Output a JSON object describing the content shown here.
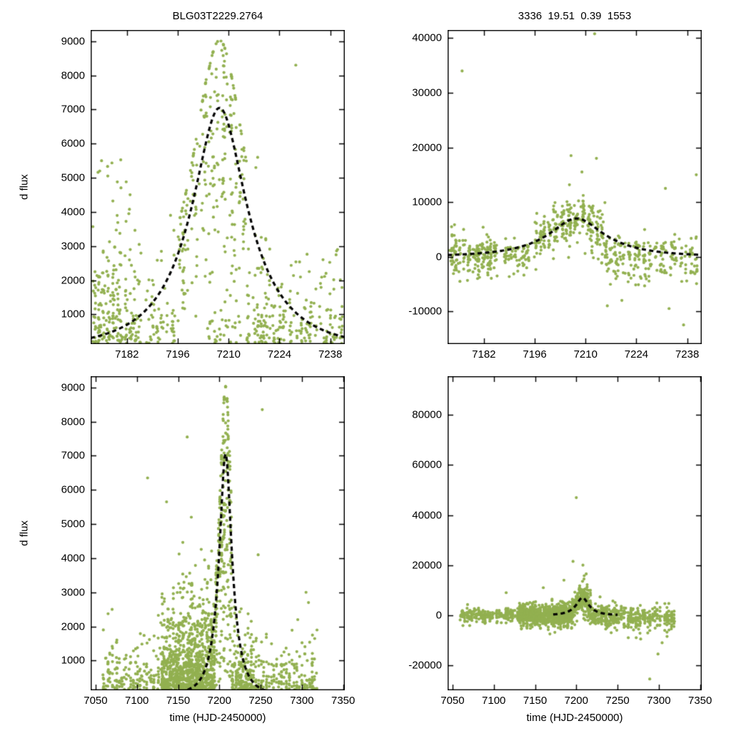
{
  "style": {
    "background": "#ffffff",
    "point_color": "#92b050",
    "curve_color": "#000000",
    "axis_color": "#000000",
    "point_radius": 2.1
  },
  "chart_data": [
    {
      "id": "top-left",
      "type": "scatter",
      "title": "BLG03T2229.2764",
      "xlabel": "",
      "ylabel": "d flux",
      "xlim": [
        7172,
        7242
      ],
      "ylim": [
        130,
        9330
      ],
      "xticks": [
        7182,
        7196,
        7210,
        7224,
        7238
      ],
      "yticks": [
        1000,
        2000,
        3000,
        4000,
        5000,
        6000,
        7000,
        8000,
        9000
      ],
      "grid": false,
      "legend": false,
      "model_curve": {
        "type": "paczynski",
        "t0": 7207.5,
        "tE": 19.51,
        "u0": 0.39,
        "peak_flux": 7050,
        "baseline": 0,
        "draw_range": [
          7172,
          7242
        ],
        "style": "dashed"
      },
      "seed": 11,
      "clusters": [
        {
          "x0": 7172.5,
          "x1": 7186,
          "cols": 11,
          "n": 230,
          "y": {
            "mode": "exp",
            "base": 150,
            "scale": 1400,
            "cap": 5600
          }
        },
        {
          "x0": 7187,
          "x1": 7195,
          "cols": 6,
          "n": 60,
          "y": {
            "mode": "exp",
            "base": 150,
            "scale": 800,
            "cap": 4000
          }
        },
        {
          "x0": 7196,
          "x1": 7204,
          "cols": 7,
          "n": 110,
          "y": {
            "mode": "model",
            "spread": 0.5,
            "fmin": 0.1,
            "fmax": 1.3
          }
        },
        {
          "x0": 7204,
          "x1": 7215,
          "cols": 9,
          "n": 170,
          "y": {
            "mode": "model",
            "spread": 0.42,
            "fmin": 0.12,
            "fmax": 1.28
          }
        },
        {
          "x0": 7203,
          "x1": 7214,
          "cols": 8,
          "n": 30,
          "y": {
            "mode": "exp",
            "base": 150,
            "scale": 700,
            "cap": 2200
          }
        },
        {
          "x0": 7215,
          "x1": 7222,
          "cols": 6,
          "n": 80,
          "y": {
            "mode": "exp",
            "base": 150,
            "scale": 1100,
            "cap": 3600
          }
        },
        {
          "x0": 7222,
          "x1": 7241.5,
          "cols": 14,
          "n": 150,
          "y": {
            "mode": "exp",
            "base": 150,
            "scale": 800,
            "cap": 3000
          }
        }
      ],
      "outliers": [
        [
          7228.5,
          8300
        ],
        [
          7218,
          5600
        ],
        [
          7217.5,
          5300
        ],
        [
          7194,
          3900
        ],
        [
          7240,
          2900
        ],
        [
          7236,
          2600
        ],
        [
          7175,
          5500
        ],
        [
          7174.5,
          5200
        ]
      ]
    },
    {
      "id": "top-right",
      "type": "scatter",
      "title": "3336  19.51  0.39  1553",
      "xlabel": "",
      "ylabel": "",
      "xlim": [
        7172,
        7242
      ],
      "ylim": [
        -16000,
        41500
      ],
      "xticks": [
        7182,
        7196,
        7210,
        7224,
        7238
      ],
      "yticks": [
        -10000,
        0,
        10000,
        20000,
        30000,
        40000
      ],
      "grid": false,
      "legend": false,
      "model_curve": {
        "type": "paczynski",
        "t0": 7207.5,
        "tE": 19.51,
        "u0": 0.39,
        "peak_flux": 7000,
        "baseline": 0,
        "draw_range": [
          7172,
          7242
        ],
        "style": "dashed"
      },
      "seed": 22,
      "clusters": [
        {
          "x0": 7172.5,
          "x1": 7186,
          "cols": 11,
          "n": 200,
          "y": {
            "mode": "gauss",
            "mu": 200,
            "sigma": 1800,
            "clip": [
              -5500,
              6500
            ]
          }
        },
        {
          "x0": 7187,
          "x1": 7195,
          "cols": 6,
          "n": 60,
          "y": {
            "mode": "gauss",
            "mu": 200,
            "sigma": 1500,
            "clip": [
              -4500,
              5500
            ]
          }
        },
        {
          "x0": 7196,
          "x1": 7204,
          "cols": 7,
          "n": 110,
          "y": {
            "mode": "modelg",
            "spread_abs": 1800
          }
        },
        {
          "x0": 7204,
          "x1": 7215,
          "cols": 9,
          "n": 160,
          "y": {
            "mode": "modelg",
            "spread_abs": 2600
          }
        },
        {
          "x0": 7215,
          "x1": 7224,
          "cols": 7,
          "n": 90,
          "y": {
            "mode": "gauss",
            "mu": 0,
            "sigma": 2200,
            "clip": [
              -7500,
              7500
            ]
          }
        },
        {
          "x0": 7224,
          "x1": 7241.5,
          "cols": 12,
          "n": 140,
          "y": {
            "mode": "gauss",
            "mu": -300,
            "sigma": 2000,
            "clip": [
              -7000,
              7000
            ]
          }
        }
      ],
      "outliers": [
        [
          7176,
          34000
        ],
        [
          7212.5,
          40800
        ],
        [
          7206,
          18500
        ],
        [
          7209,
          15500
        ],
        [
          7213,
          18000
        ],
        [
          7216,
          -9000
        ],
        [
          7220,
          -8000
        ],
        [
          7232,
          12500
        ],
        [
          7240.5,
          15000
        ],
        [
          7237,
          -12500
        ],
        [
          7233,
          -9500
        ]
      ]
    },
    {
      "id": "bottom-left",
      "type": "scatter",
      "title": "",
      "xlabel": "time (HJD-2450000)",
      "ylabel": "d flux",
      "xlim": [
        7044,
        7352
      ],
      "ylim": [
        130,
        9330
      ],
      "xticks": [
        7050,
        7100,
        7150,
        7200,
        7250,
        7300,
        7350
      ],
      "yticks": [
        1000,
        2000,
        3000,
        4000,
        5000,
        6000,
        7000,
        8000,
        9000
      ],
      "grid": false,
      "legend": false,
      "model_curve": {
        "type": "paczynski",
        "t0": 7207.5,
        "tE": 19.51,
        "u0": 0.39,
        "peak_flux": 7050,
        "baseline": 0,
        "draw_range": [
          7044,
          7352
        ],
        "style": "dashed"
      },
      "seed": 33,
      "clusters": [
        {
          "x0": 7058,
          "x1": 7130,
          "cols": 26,
          "n": 180,
          "y": {
            "mode": "exp",
            "base": 150,
            "scale": 500,
            "cap": 2600
          }
        },
        {
          "x0": 7130,
          "x1": 7195,
          "cols": 30,
          "n": 900,
          "y": {
            "mode": "exp",
            "base": 150,
            "scale": 800,
            "cap": 3300
          }
        },
        {
          "x0": 7150,
          "x1": 7195,
          "cols": 20,
          "n": 120,
          "y": {
            "mode": "exp",
            "base": 800,
            "scale": 1200,
            "cap": 4700
          }
        },
        {
          "x0": 7195,
          "x1": 7215,
          "cols": 12,
          "n": 260,
          "y": {
            "mode": "model",
            "spread": 0.45,
            "fmin": 0.1,
            "fmax": 1.28
          }
        },
        {
          "x0": 7215,
          "x1": 7240,
          "cols": 12,
          "n": 160,
          "y": {
            "mode": "exp",
            "base": 150,
            "scale": 700,
            "cap": 2600
          }
        },
        {
          "x0": 7240,
          "x1": 7320,
          "cols": 26,
          "n": 200,
          "y": {
            "mode": "exp",
            "base": 150,
            "scale": 500,
            "cap": 1900
          }
        }
      ],
      "outliers": [
        [
          7113,
          6350
        ],
        [
          7136,
          5650
        ],
        [
          7161,
          7550
        ],
        [
          7166,
          5200
        ],
        [
          7252,
          8350
        ],
        [
          7247,
          4100
        ],
        [
          7305,
          3000
        ],
        [
          7308,
          2700
        ],
        [
          7070,
          2500
        ],
        [
          7295,
          2200
        ]
      ]
    },
    {
      "id": "bottom-right",
      "type": "scatter",
      "title": "",
      "xlabel": "time (HJD-2450000)",
      "ylabel": "",
      "xlim": [
        7044,
        7352
      ],
      "ylim": [
        -30000,
        95500
      ],
      "xticks": [
        7050,
        7100,
        7150,
        7200,
        7250,
        7300,
        7350
      ],
      "yticks": [
        -20000,
        0,
        20000,
        40000,
        60000,
        80000
      ],
      "grid": false,
      "legend": false,
      "model_curve": {
        "type": "paczynski",
        "t0": 7207.5,
        "tE": 19.51,
        "u0": 0.39,
        "peak_flux": 7000,
        "baseline": 0,
        "draw_range": [
          7172,
          7250
        ],
        "style": "dashed"
      },
      "seed": 44,
      "clusters": [
        {
          "x0": 7058,
          "x1": 7130,
          "cols": 26,
          "n": 220,
          "y": {
            "mode": "gauss",
            "mu": 0,
            "sigma": 1300,
            "clip": [
              -4500,
              4500
            ]
          }
        },
        {
          "x0": 7130,
          "x1": 7195,
          "cols": 30,
          "n": 800,
          "y": {
            "mode": "gauss",
            "mu": 0,
            "sigma": 2200,
            "clip": [
              -7000,
              8000
            ]
          }
        },
        {
          "x0": 7195,
          "x1": 7218,
          "cols": 12,
          "n": 240,
          "y": {
            "mode": "modelg",
            "spread_abs": 2800
          }
        },
        {
          "x0": 7218,
          "x1": 7250,
          "cols": 14,
          "n": 180,
          "y": {
            "mode": "gauss",
            "mu": 0,
            "sigma": 2300,
            "clip": [
              -7000,
              8000
            ]
          }
        },
        {
          "x0": 7250,
          "x1": 7320,
          "cols": 24,
          "n": 260,
          "y": {
            "mode": "gauss",
            "mu": -800,
            "sigma": 2600,
            "clip": [
              -9000,
              6000
            ]
          }
        }
      ],
      "outliers": [
        [
          7200,
          47000
        ],
        [
          7196,
          21500
        ],
        [
          7208,
          20000
        ],
        [
          7212,
          16500
        ],
        [
          7185,
          14000
        ],
        [
          7289,
          -25500
        ],
        [
          7299,
          -15500
        ],
        [
          7304,
          -11000
        ],
        [
          7278,
          -9500
        ],
        [
          7310,
          -8500
        ],
        [
          7115,
          9000
        ],
        [
          7160,
          11000
        ],
        [
          7168,
          -7500
        ]
      ]
    }
  ]
}
